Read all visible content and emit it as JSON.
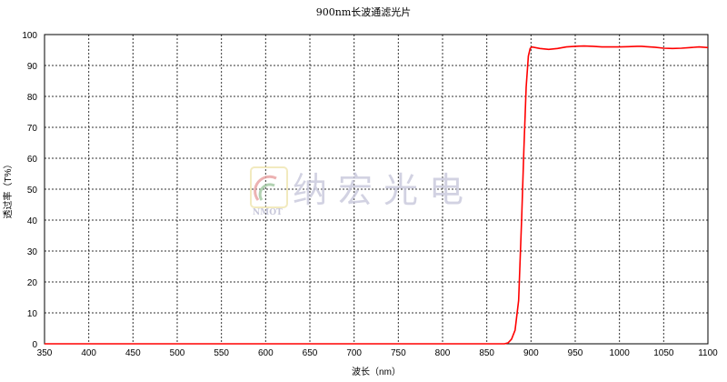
{
  "chart_data": {
    "type": "line",
    "title": "900nm长波通滤光片",
    "xlabel": "波长（nm）",
    "ylabel": "透过率（T%）",
    "xlim": [
      350,
      1100
    ],
    "ylim": [
      0,
      100
    ],
    "xticks": [
      350,
      400,
      450,
      500,
      550,
      600,
      650,
      700,
      750,
      800,
      850,
      900,
      950,
      1000,
      1050,
      1100
    ],
    "yticks": [
      0,
      10,
      20,
      30,
      40,
      50,
      60,
      70,
      80,
      90,
      100
    ],
    "grid": true,
    "series": [
      {
        "color": "#ff0000",
        "x": [
          350,
          870,
          874,
          878,
          882,
          886,
          889.5,
          892,
          894.5,
          897,
          899,
          901,
          910,
          920,
          930,
          940,
          950,
          960,
          970,
          980,
          990,
          1000,
          1010,
          1020,
          1025,
          1030,
          1040,
          1050,
          1060,
          1070,
          1080,
          1090,
          1100
        ],
        "y": [
          0,
          0,
          0.3,
          1.5,
          4.4,
          14,
          41,
          63,
          83,
          93,
          95.5,
          96,
          95.5,
          95.2,
          95.5,
          96,
          96.2,
          96.3,
          96.2,
          96,
          96,
          96,
          96.1,
          96.2,
          96.2,
          96.1,
          95.9,
          95.6,
          95.5,
          95.6,
          95.8,
          96,
          95.8
        ]
      }
    ]
  },
  "watermark": {
    "text": "纳宏光电",
    "logo_text": "NMOT"
  }
}
